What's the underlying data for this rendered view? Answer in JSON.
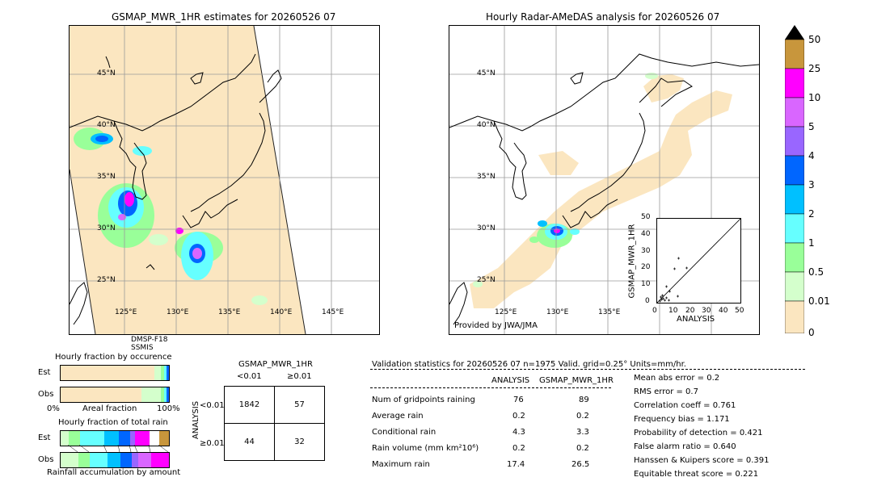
{
  "left_map": {
    "title": "GSMAP_MWR_1HR estimates for 20260526 07",
    "lat_labels": [
      "45°N",
      "40°N",
      "35°N",
      "30°N",
      "25°N"
    ],
    "lon_labels": [
      "125°E",
      "130°E",
      "135°E",
      "140°E",
      "145°E"
    ],
    "sensor_label_1": "DMSP-F18",
    "sensor_label_2": "SSMIS"
  },
  "right_map": {
    "title": "Hourly Radar-AMeDAS analysis for 20260526 07",
    "lat_labels": [
      "45°N",
      "40°N",
      "35°N",
      "30°N",
      "25°N"
    ],
    "lon_labels": [
      "125°E",
      "130°E",
      "135°E"
    ],
    "credit": "Provided by JWA/JMA"
  },
  "colorbar": {
    "labels": [
      "50",
      "25",
      "10",
      "5",
      "4",
      "3",
      "2",
      "1",
      "0.5",
      "0.01",
      "0"
    ],
    "colors": [
      "#c8963c",
      "#ff00ff",
      "#d966ff",
      "#9966ff",
      "#0066ff",
      "#00c0ff",
      "#66ffff",
      "#99ff99",
      "#d4ffcc",
      "#fbe6c0"
    ]
  },
  "scatter": {
    "ylabel": "GSMAP_MWR_1HR",
    "xlabel": "ANALYSIS",
    "ticks": [
      "0",
      "10",
      "20",
      "30",
      "40",
      "50"
    ]
  },
  "occurrence": {
    "title": "Hourly fraction by occurence",
    "row_est": "Est",
    "row_obs": "Obs",
    "axis_left": "0%",
    "axis_mid": "Areal fraction",
    "axis_right": "100%"
  },
  "total_rain": {
    "title": "Hourly fraction of total rain",
    "row_est": "Est",
    "row_obs": "Obs",
    "axis_label": "Rainfall accumulation by amount"
  },
  "contingency": {
    "title": "GSMAP_MWR_1HR",
    "col_lt": "<0.01",
    "col_ge": "≥0.01",
    "row_axis": "ANALYSIS",
    "row_lt": "<0.01",
    "row_ge": "≥0.01",
    "cells": [
      [
        "1842",
        "57"
      ],
      [
        "44",
        "32"
      ]
    ]
  },
  "validation": {
    "header": "Validation statistics for 20260526 07  n=1975 Valid. grid=0.25° Units=mm/hr.",
    "col_analysis": "ANALYSIS",
    "col_gsmap": "GSMAP_MWR_1HR",
    "rows": [
      {
        "label": "Num of gridpoints raining",
        "analysis": "76",
        "gsmap": "89"
      },
      {
        "label": "Average rain",
        "analysis": "0.2",
        "gsmap": "0.2"
      },
      {
        "label": "Conditional rain",
        "analysis": "4.3",
        "gsmap": "3.3"
      },
      {
        "label": "Rain volume (mm km²10⁶)",
        "analysis": "0.2",
        "gsmap": "0.2"
      },
      {
        "label": "Maximum rain",
        "analysis": "17.4",
        "gsmap": "26.5"
      }
    ],
    "scores": [
      "Mean abs error =    0.2",
      "RMS error =    0.7",
      "Correlation coeff =  0.761",
      "Frequency bias =  1.171",
      "Probability of detection =  0.421",
      "False alarm ratio =  0.640",
      "Hanssen & Kuipers score =  0.391",
      "Equitable threat score =  0.221"
    ]
  }
}
